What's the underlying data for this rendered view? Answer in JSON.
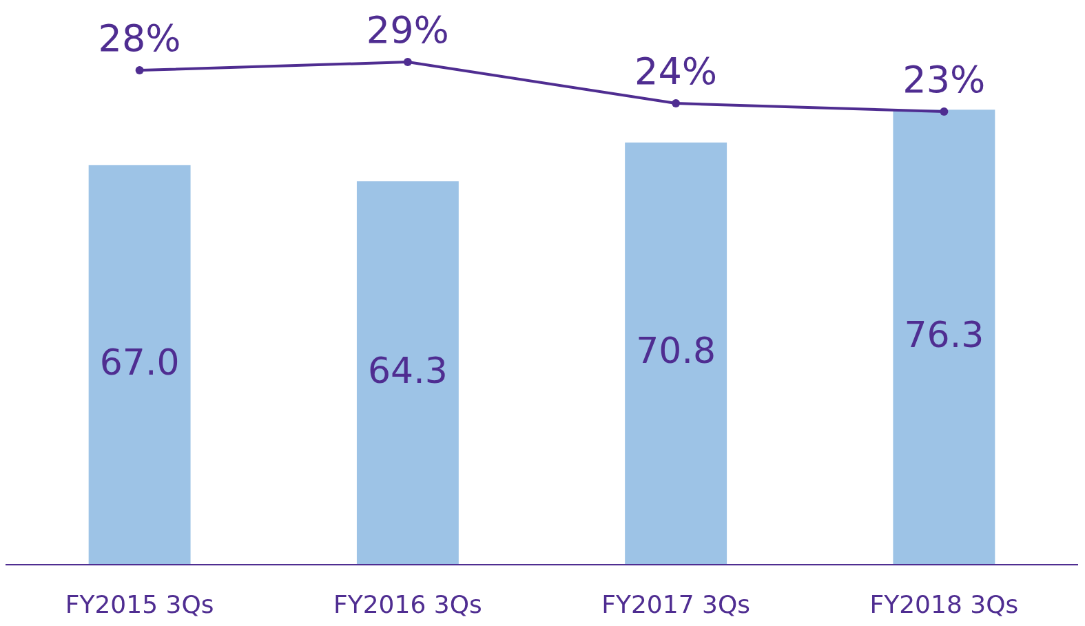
{
  "chart_data": {
    "type": "bar",
    "categories": [
      "FY2015 3Qs",
      "FY2016 3Qs",
      "FY2017 3Qs",
      "FY2018 3Qs"
    ],
    "series": [
      {
        "color": "#9dc3e6",
        "values": [
          67.0,
          64.3,
          70.8,
          76.3
        ],
        "value_labels": [
          "67.0",
          "64.3",
          "70.8",
          "76.3"
        ]
      },
      {
        "type": "line",
        "axis": "y2",
        "color": "#4f2d91",
        "values": [
          28,
          29,
          24,
          23
        ],
        "value_labels": [
          "28%",
          "29%",
          "24%",
          "23%"
        ]
      }
    ],
    "ylim": [
      0,
      94.7
    ],
    "y2lim": [
      -31.8,
      36.5
    ],
    "tick_labels": "x",
    "marker": "circle"
  }
}
